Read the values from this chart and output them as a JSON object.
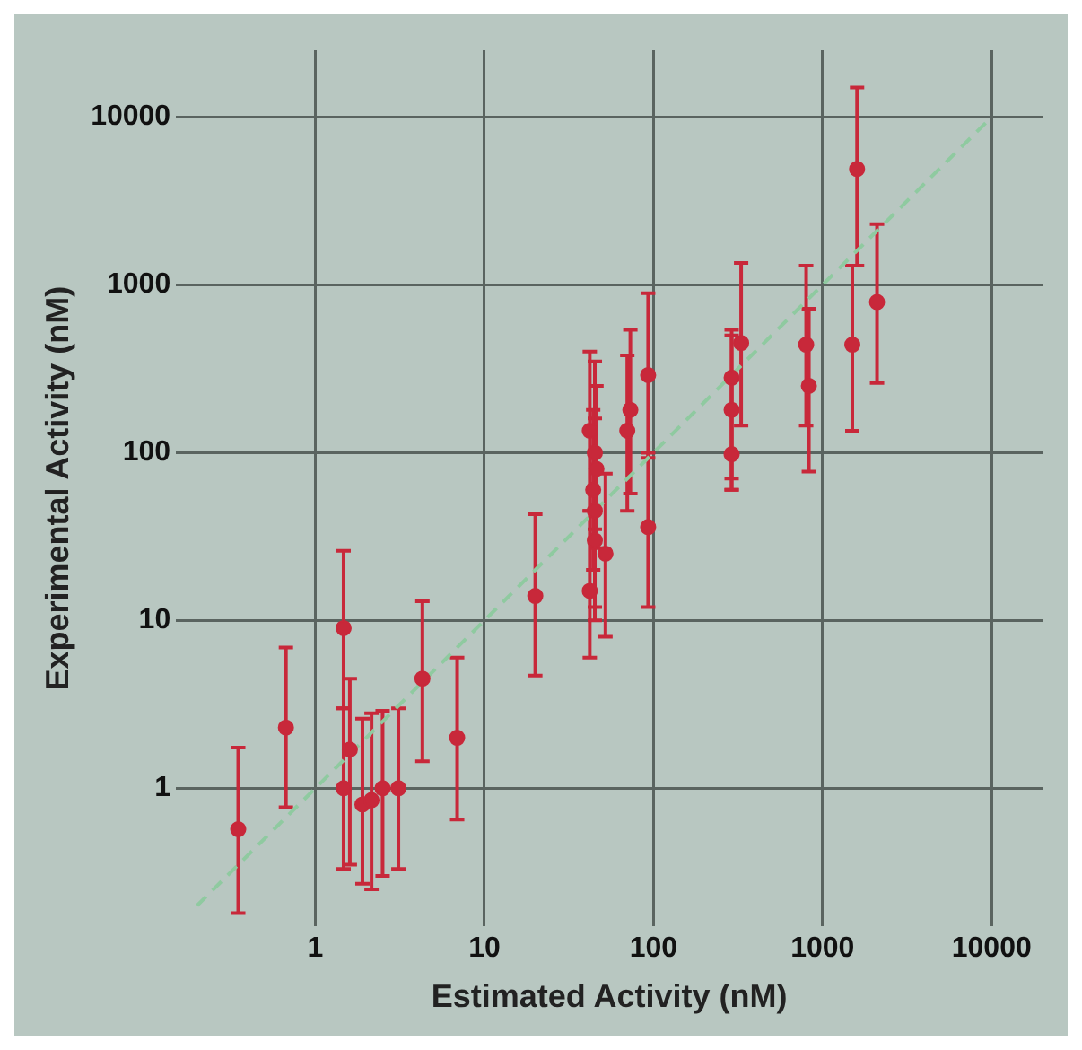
{
  "chart_data": {
    "type": "scatter",
    "xlabel": "Estimated Activity (nM)",
    "ylabel": "Experimental Activity (nM)",
    "log": "xy",
    "xlim": [
      0.15,
      20000
    ],
    "ylim": [
      0.15,
      25000
    ],
    "xticks": [
      1,
      10,
      100,
      1000,
      10000
    ],
    "yticks": [
      1,
      10,
      100,
      1000,
      10000
    ],
    "grid": true,
    "legend": false,
    "marker": "circle",
    "series": [
      {
        "type": "scatter",
        "color": "#c8283a",
        "x": [
          0.35,
          0.67,
          1.47,
          1.6,
          1.47,
          1.9,
          2.15,
          2.5,
          3.1,
          4.3,
          6.9,
          20,
          42,
          45,
          45,
          45,
          42,
          52,
          44,
          46,
          70,
          73,
          93,
          93,
          290,
          290,
          290,
          330,
          800,
          830,
          1600,
          1500,
          2100
        ],
        "values": [
          0.57,
          2.3,
          9,
          1.7,
          1,
          0.8,
          0.85,
          1,
          1,
          4.5,
          2,
          14,
          135,
          100,
          45,
          30,
          15,
          25,
          60,
          80,
          135,
          180,
          290,
          36,
          280,
          180,
          98,
          450,
          440,
          250,
          4900,
          440,
          790
        ],
        "errors": [
          [
            0.18,
            1.75
          ],
          [
            0.77,
            6.9
          ],
          [
            3,
            26
          ],
          [
            0.35,
            4.5
          ],
          [
            0.33,
            3
          ],
          [
            0.27,
            2.6
          ],
          [
            0.25,
            2.8
          ],
          [
            0.3,
            2.9
          ],
          [
            0.33,
            3
          ],
          [
            1.45,
            13
          ],
          [
            0.65,
            6
          ],
          [
            4.7,
            43
          ],
          [
            45,
            400
          ],
          [
            35,
            350
          ],
          [
            12,
            160
          ],
          [
            10,
            100
          ],
          [
            6,
            45
          ],
          [
            8,
            75
          ],
          [
            20,
            180
          ],
          [
            27,
            250
          ],
          [
            45,
            380
          ],
          [
            57,
            540
          ],
          [
            93,
            890
          ],
          [
            12,
            100
          ],
          [
            60,
            540
          ],
          [
            70,
            500
          ],
          [
            60,
            270
          ],
          [
            145,
            1350
          ],
          [
            145,
            1300
          ],
          [
            77,
            720
          ],
          [
            1300,
            15000
          ],
          [
            135,
            1300
          ],
          [
            260,
            2300
          ]
        ]
      },
      {
        "type": "line",
        "color": "#8fcaa0",
        "line_style": "dashed",
        "marker": "none",
        "x": [
          0.2,
          10000
        ],
        "values": [
          0.2,
          10000
        ]
      }
    ]
  }
}
